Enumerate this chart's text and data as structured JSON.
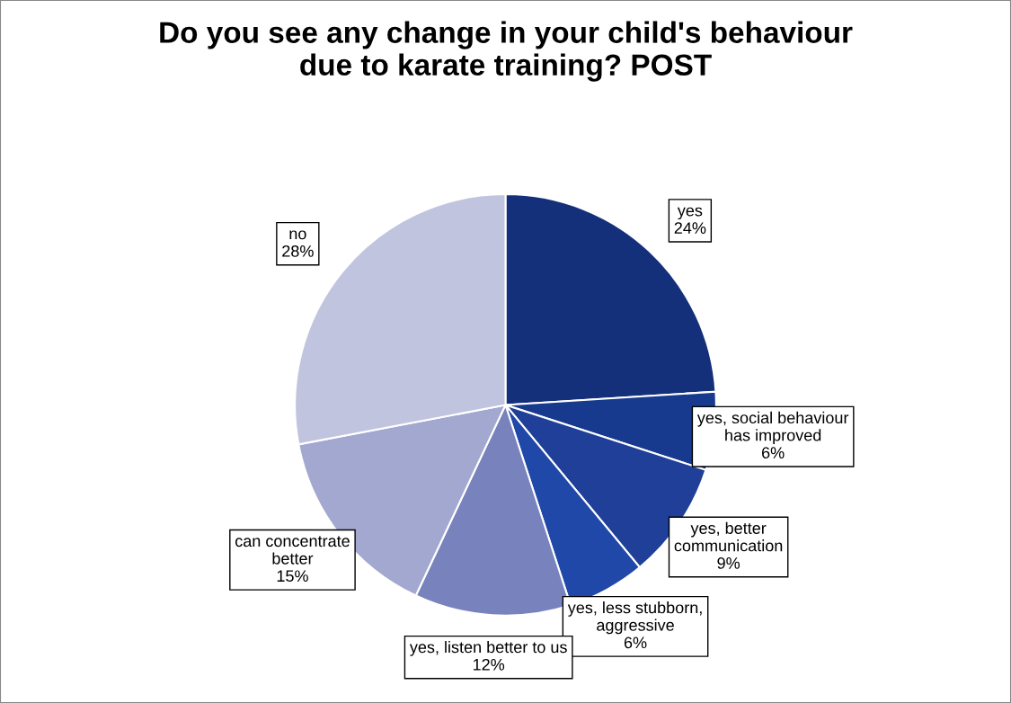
{
  "chart_data": {
    "type": "pie",
    "title": "Do you see any change in your child's behaviour\ndue to karate training? POST",
    "categories": [
      "yes",
      "yes, social behaviour\nhas improved",
      "yes, better\ncommunication",
      "yes, less stubborn,\naggressive",
      "yes, listen better to us",
      "can concentrate\nbetter",
      "no"
    ],
    "values": [
      24,
      6,
      9,
      6,
      12,
      15,
      28
    ],
    "value_labels": [
      "24%",
      "6%",
      "9%",
      "6%",
      "12%",
      "15%",
      "28%"
    ],
    "colors": [
      "#14307a",
      "#183a8e",
      "#1f3f98",
      "#2048a8",
      "#7882bd",
      "#a2a8cf",
      "#c0c4df"
    ],
    "legend": false
  }
}
